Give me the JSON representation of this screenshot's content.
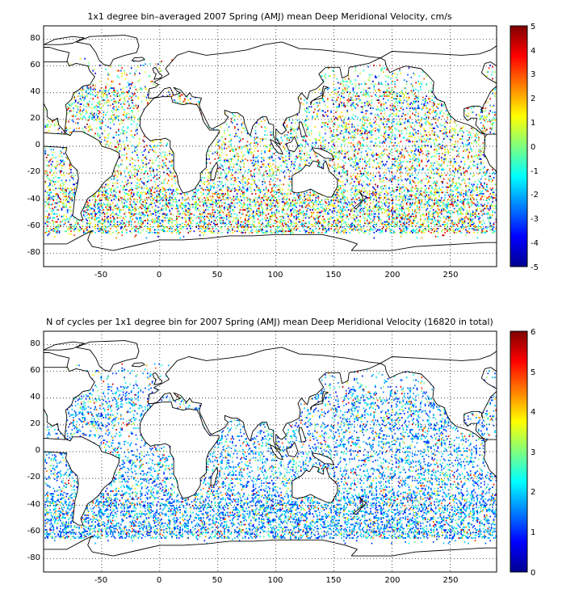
{
  "colors": {
    "land": "#ffffff",
    "coast": "#000000",
    "grid": "#000000"
  },
  "maps": [
    {
      "title": "1x1 degree bin–averaged 2007 Spring (AMJ) mean Deep Meridional Velocity, cm/s",
      "x_ticks": [
        "-50",
        "0",
        "50",
        "100",
        "150",
        "200",
        "250"
      ],
      "y_ticks": [
        "80",
        "60",
        "40",
        "20",
        "0",
        "-20",
        "-40",
        "-60",
        "-80"
      ],
      "colorbar": {
        "min": -5,
        "max": 5,
        "ticks": [
          "5",
          "4",
          "3",
          "2",
          "1",
          "0",
          "-1",
          "-2",
          "-3",
          "-4",
          "-5"
        ],
        "colormap": "jet"
      }
    },
    {
      "title": "N of cycles per 1x1 degree bin for 2007 Spring (AMJ) mean Deep Meridional Velocity (16820 in total)",
      "x_ticks": [
        "-50",
        "0",
        "50",
        "100",
        "150",
        "200",
        "250"
      ],
      "y_ticks": [
        "80",
        "60",
        "40",
        "20",
        "0",
        "-20",
        "-40",
        "-60",
        "-80"
      ],
      "colorbar": {
        "min": 0,
        "max": 6,
        "ticks": [
          "6",
          "5",
          "4",
          "3",
          "2",
          "1",
          "0"
        ],
        "colormap": "jet"
      }
    }
  ]
}
